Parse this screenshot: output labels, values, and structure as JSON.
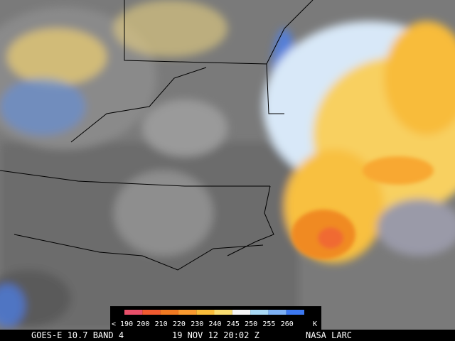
{
  "image": {
    "caption": {
      "satellite": "GOES-E 10.7 BAND 4",
      "time": "19 NOV 12 20:02 Z",
      "source": "NASA LARC"
    },
    "legend": {
      "unit": "K",
      "items": [
        {
          "label": "< 190",
          "color": "#e8506a"
        },
        {
          "label": "200",
          "color": "#f05a30"
        },
        {
          "label": "210",
          "color": "#f07a22"
        },
        {
          "label": "220",
          "color": "#f89a30"
        },
        {
          "label": "230",
          "color": "#f8bc3a"
        },
        {
          "label": "240",
          "color": "#f8dc70"
        },
        {
          "label": "245",
          "color": "#f4f4f4"
        },
        {
          "label": "250",
          "color": "#a8d8f4"
        },
        {
          "label": "255",
          "color": "#7cb0f4"
        },
        {
          "label": "260",
          "color": "#3c78f0"
        }
      ]
    }
  }
}
